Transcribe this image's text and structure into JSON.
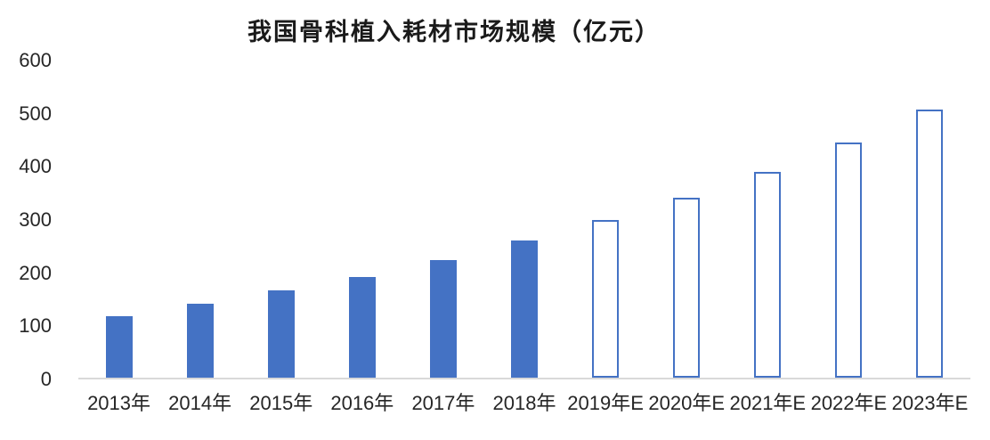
{
  "chart_data": {
    "type": "bar",
    "title": "我国骨科植入耗材市场规模（亿元）",
    "categories": [
      "2013年",
      "2014年",
      "2015年",
      "2016年",
      "2017年",
      "2018年",
      "2019年E",
      "2020年E",
      "2021年E",
      "2022年E",
      "2023年E"
    ],
    "values": [
      115,
      139,
      164,
      190,
      221,
      258,
      297,
      339,
      388,
      443,
      505
    ],
    "bar_styles": [
      "solid",
      "solid",
      "solid",
      "solid",
      "solid",
      "solid",
      "outline",
      "outline",
      "outline",
      "outline",
      "outline"
    ],
    "xlabel": "",
    "ylabel": "",
    "ylim": [
      0,
      600
    ],
    "ytick_step": 100,
    "ytick_labels": [
      "0",
      "100",
      "200",
      "300",
      "400",
      "500",
      "600"
    ],
    "grid": false,
    "legend": "none",
    "colors": {
      "bar_fill": "#4472C4",
      "bar_outline": "#4472C4",
      "axis_line": "#d9d9d9",
      "text": "#262626"
    }
  }
}
